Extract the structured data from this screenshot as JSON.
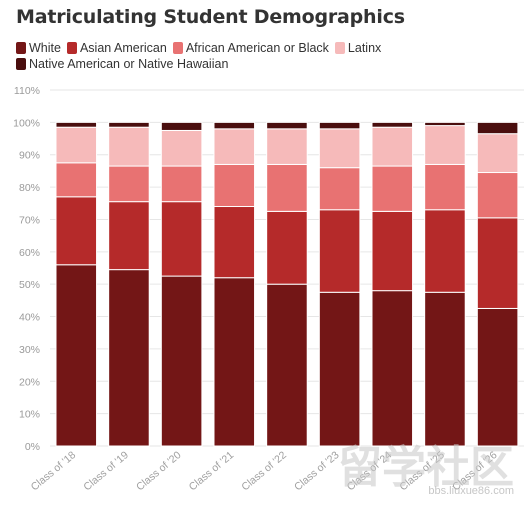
{
  "title": "Matriculating Student Demographics",
  "legend": [
    {
      "label": "White",
      "color": "#731616"
    },
    {
      "label": "Asian American",
      "color": "#b52a2a"
    },
    {
      "label": "African American or Black",
      "color": "#e87272"
    },
    {
      "label": "Latinx",
      "color": "#f6baba"
    },
    {
      "label": "Native American or Native Hawaiian",
      "color": "#4a0e0e"
    }
  ],
  "watermark": {
    "text": "留学社区",
    "url": "bbs.liuxue86.com"
  },
  "chart_data": {
    "type": "bar",
    "stacked": true,
    "title": "Matriculating Student Demographics",
    "categories": [
      "Class of '18",
      "Class of '19",
      "Class of '20",
      "Class of '21",
      "Class of '22",
      "Class of '23",
      "Class of '24",
      "Class of '25",
      "Class of '26"
    ],
    "series": [
      {
        "name": "White",
        "color": "#731616",
        "values": [
          56,
          54.5,
          52.5,
          52,
          50,
          47.5,
          48,
          47.5,
          42.5
        ]
      },
      {
        "name": "Asian American",
        "color": "#b52a2a",
        "values": [
          21,
          21,
          23,
          22,
          22.5,
          25.5,
          24.5,
          25.5,
          28
        ]
      },
      {
        "name": "African American or Black",
        "color": "#e87272",
        "values": [
          10.5,
          11,
          11,
          13,
          14.5,
          13,
          14,
          14,
          14
        ]
      },
      {
        "name": "Latinx",
        "color": "#f6baba",
        "values": [
          11,
          12,
          11,
          11,
          11,
          12,
          12,
          12,
          12
        ]
      },
      {
        "name": "Native American or Native Hawaiian",
        "color": "#4a0e0e",
        "values": [
          1.5,
          1.5,
          2.5,
          2,
          2,
          2,
          1.5,
          1,
          3.5
        ]
      }
    ],
    "ylim": [
      0,
      110
    ],
    "yticks": [
      "0%",
      "10%",
      "20%",
      "30%",
      "40%",
      "50%",
      "60%",
      "70%",
      "80%",
      "90%",
      "100%",
      "110%"
    ],
    "grid": true,
    "legend_position": "top-left"
  }
}
